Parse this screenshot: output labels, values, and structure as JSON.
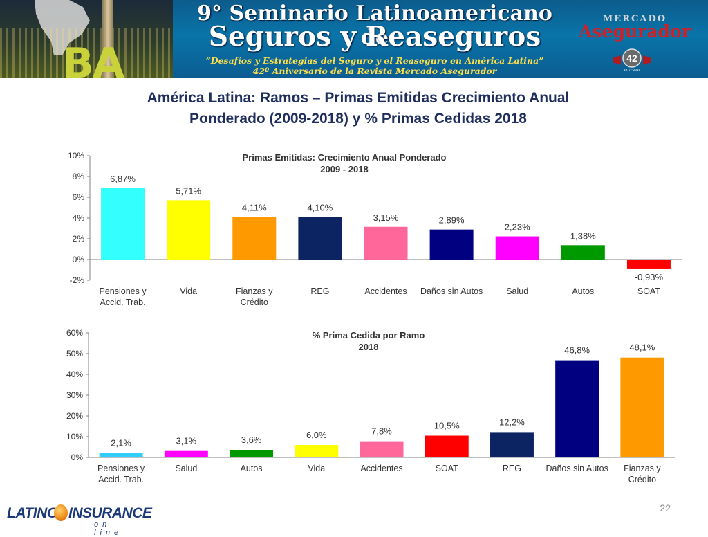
{
  "banner": {
    "city_text": "BA",
    "title_line1": "9° Seminario Latinoamericano de",
    "title_line2": "Seguros y Reaseguros",
    "subtitle_line1": "“Desafíos y Estrategias del Seguro y el Reaseguro en América Latina”",
    "subtitle_line2": "42º Aniversario de la Revista Mercado Asegurador",
    "logo_small": "MERCADO",
    "logo_big": "Asegurador",
    "seal_number": "42",
    "seal_years": "1977 - 2019"
  },
  "slide_title_line1": "América Latina: Ramos – Primas Emitidas Crecimiento Anual",
  "slide_title_line2": "Ponderado (2009-2018) y % Primas Cedidas 2018",
  "chart_data": [
    {
      "type": "bar",
      "title": "Primas Emitidas: Crecimiento Anual Ponderado",
      "subtitle": "2009 - 2018",
      "categories": [
        [
          "Pensiones y",
          "Accid. Trab."
        ],
        [
          "Vida"
        ],
        [
          "Fianzas y",
          "Crédito"
        ],
        [
          "REG"
        ],
        [
          "Accidentes"
        ],
        [
          "Daños sin Autos"
        ],
        [
          "Salud"
        ],
        [
          "Autos"
        ],
        [
          "SOAT"
        ]
      ],
      "values": [
        6.87,
        5.71,
        4.11,
        4.1,
        3.15,
        2.89,
        2.23,
        1.38,
        -0.93
      ],
      "value_labels": [
        "6,87%",
        "5,71%",
        "4,11%",
        "4,10%",
        "3,15%",
        "2,89%",
        "2,23%",
        "1,38%",
        "-0,93%"
      ],
      "colors": [
        "#33ffff",
        "#ffff00",
        "#ff9900",
        "#0c2461",
        "#ff6699",
        "#000080",
        "#ff00ff",
        "#009900",
        "#ff0000"
      ],
      "ylim": [
        -2,
        10
      ],
      "yticks": [
        -2,
        0,
        2,
        4,
        6,
        8,
        10
      ],
      "ytick_labels": [
        "-2%",
        "0%",
        "2%",
        "4%",
        "6%",
        "8%",
        "10%"
      ],
      "grid": false,
      "legend": "none"
    },
    {
      "type": "bar",
      "title": "% Prima Cedida por Ramo",
      "subtitle": "2018",
      "categories": [
        [
          "Pensiones y",
          "Accid. Trab."
        ],
        [
          "Salud"
        ],
        [
          "Autos"
        ],
        [
          "Vida"
        ],
        [
          "Accidentes"
        ],
        [
          "SOAT"
        ],
        [
          "REG"
        ],
        [
          "Daños sin Autos"
        ],
        [
          "Fianzas y",
          "Crédito"
        ]
      ],
      "values": [
        2.1,
        3.1,
        3.6,
        6.0,
        7.8,
        10.5,
        12.2,
        46.8,
        48.1
      ],
      "value_labels": [
        "2,1%",
        "3,1%",
        "3,6%",
        "6,0%",
        "7,8%",
        "10,5%",
        "12,2%",
        "46,8%",
        "48,1%"
      ],
      "colors": [
        "#33ccff",
        "#ff00ff",
        "#009900",
        "#ffff00",
        "#ff6699",
        "#ff0000",
        "#0c2461",
        "#000080",
        "#ff9900"
      ],
      "ylim": [
        0,
        60
      ],
      "yticks": [
        0,
        10,
        20,
        30,
        40,
        50,
        60
      ],
      "ytick_labels": [
        "0%",
        "10%",
        "20%",
        "30%",
        "40%",
        "50%",
        "60%"
      ],
      "grid": false,
      "legend": "none"
    }
  ],
  "footer": {
    "logo_word1": "LATINO",
    "logo_word2": "INSURANCE",
    "logo_sub": "on line",
    "page_number": "22"
  }
}
